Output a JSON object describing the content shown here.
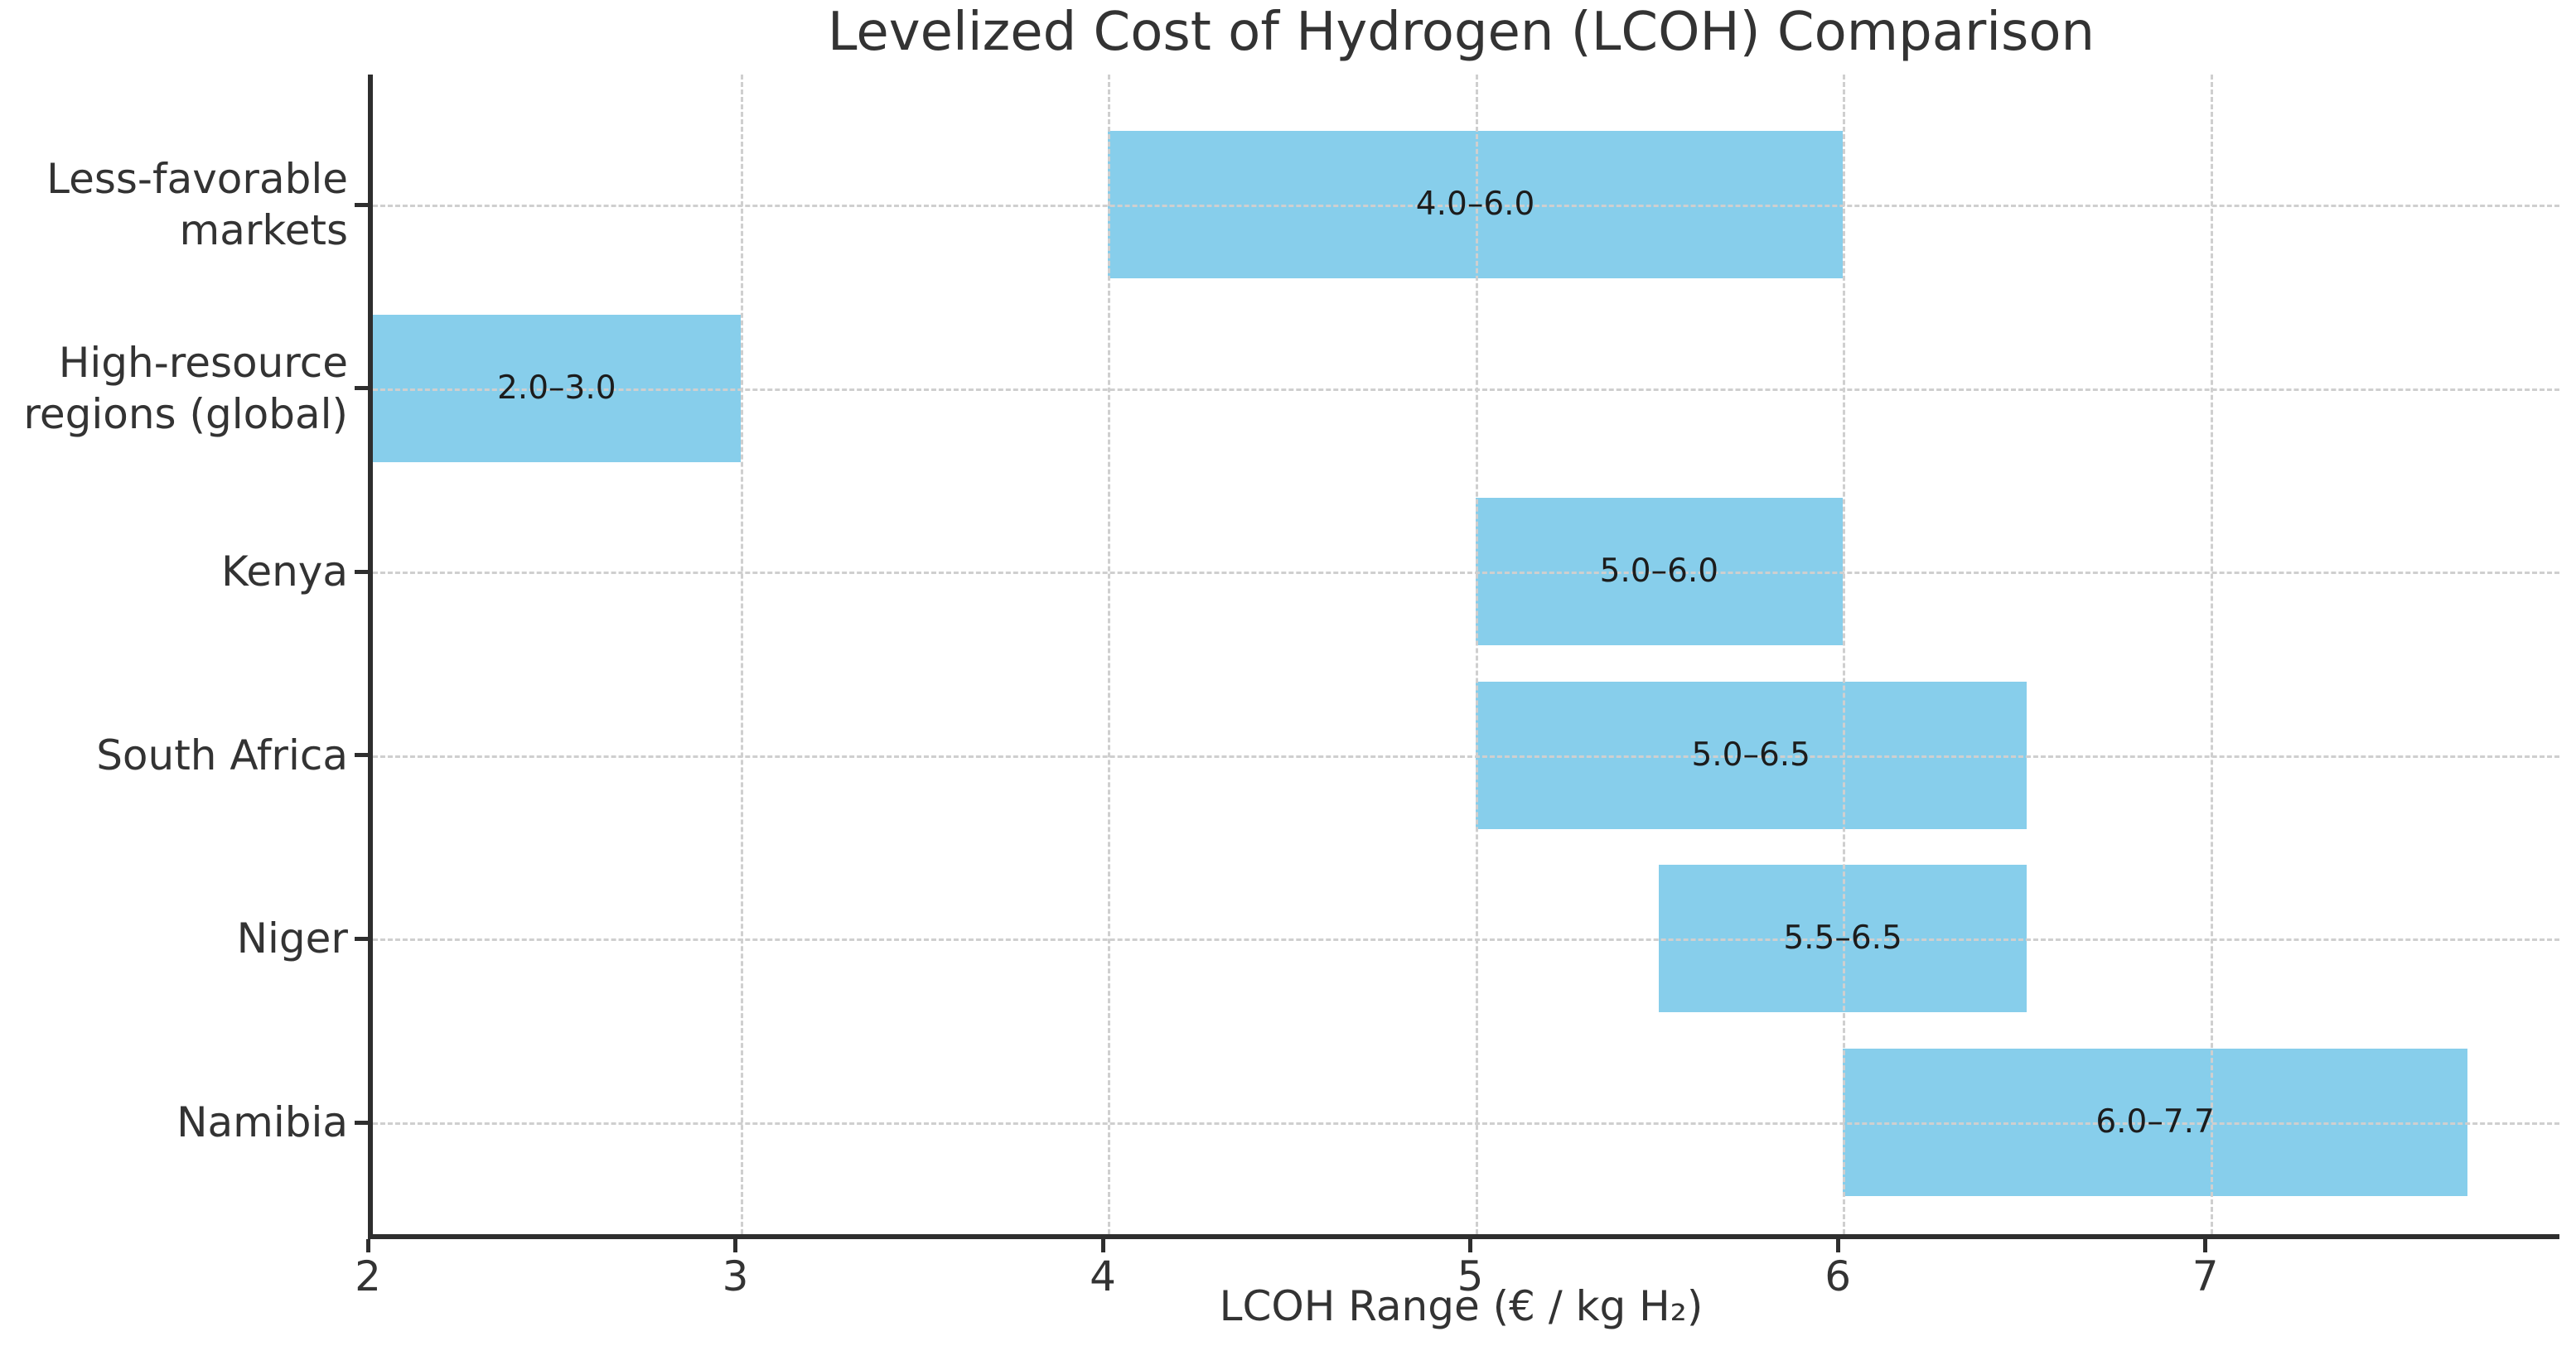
{
  "chart_data": {
    "type": "bar",
    "orientation": "horizontal",
    "title": "Levelized Cost of Hydrogen (LCOH) Comparison",
    "xlabel": "LCOH Range (€ / kg H₂)",
    "categories": [
      "Less-favorable markets",
      "High-resource regions (global)",
      "Kenya",
      "South Africa",
      "Niger",
      "Namibia"
    ],
    "category_lines": [
      [
        "Less-favorable",
        "markets"
      ],
      [
        "High-resource",
        "regions (global)"
      ],
      [
        "Kenya"
      ],
      [
        "South Africa"
      ],
      [
        "Niger"
      ],
      [
        "Namibia"
      ]
    ],
    "ranges": [
      [
        4.0,
        6.0
      ],
      [
        2.0,
        3.0
      ],
      [
        5.0,
        6.0
      ],
      [
        5.0,
        6.5
      ],
      [
        5.5,
        6.5
      ],
      [
        6.0,
        7.7
      ]
    ],
    "bar_labels": [
      "4.0–6.0",
      "2.0–3.0",
      "5.0–6.0",
      "5.0–6.5",
      "5.5–6.5",
      "6.0–7.7"
    ],
    "x_ticks": [
      "2",
      "3",
      "4",
      "5",
      "6",
      "7"
    ],
    "xlim": [
      2,
      7.95
    ],
    "grid": true,
    "legend": null,
    "colors": {
      "bar": "#87CEEB",
      "grid": "#cfcfcf",
      "axis": "#2e2e2e",
      "text": "#333333",
      "bar_label_text": "#1c1c1c",
      "background": "#ffffff"
    }
  }
}
